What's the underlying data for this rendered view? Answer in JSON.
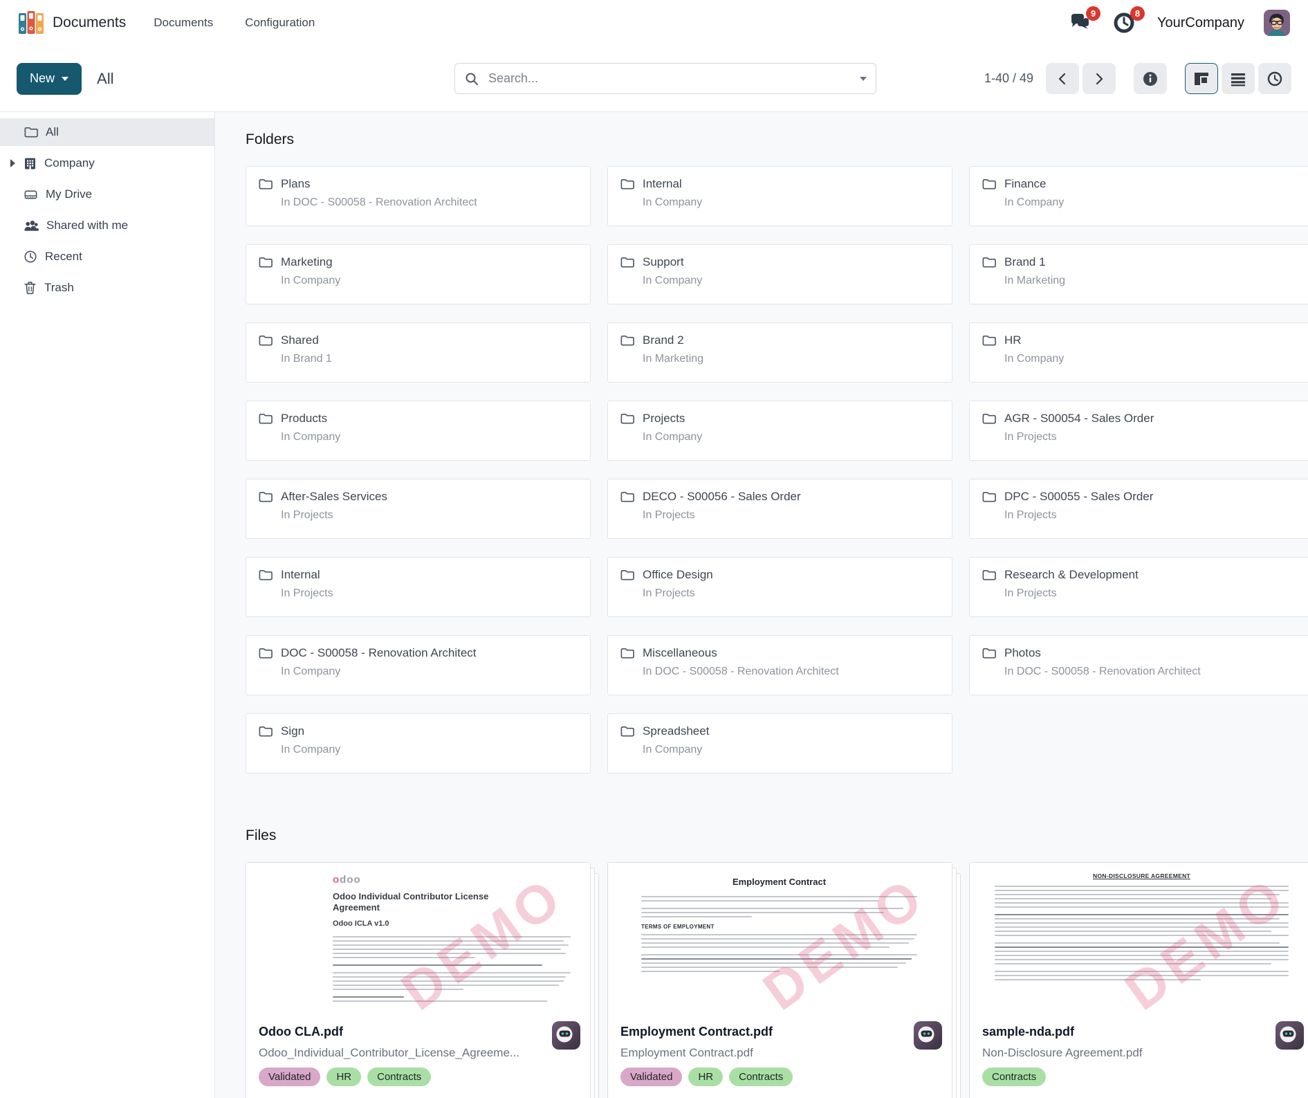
{
  "header": {
    "app_name": "Documents",
    "menus": [
      {
        "label": "Documents"
      },
      {
        "label": "Configuration"
      }
    ],
    "chat_badge": "9",
    "activity_badge": "8",
    "company": "YourCompany"
  },
  "control": {
    "new_label": "New",
    "breadcrumb": "All",
    "search_placeholder": "Search...",
    "pager": "1-40 / 49"
  },
  "sidebar": {
    "items": [
      {
        "label": "All"
      },
      {
        "label": "Company"
      },
      {
        "label": "My Drive"
      },
      {
        "label": "Shared with me"
      },
      {
        "label": "Recent"
      },
      {
        "label": "Trash"
      }
    ]
  },
  "sections": {
    "folders_title": "Folders",
    "files_title": "Files"
  },
  "folders": [
    {
      "name": "Plans",
      "location": "In DOC - S00058 - Renovation Architect"
    },
    {
      "name": "Internal",
      "location": "In Company"
    },
    {
      "name": "Finance",
      "location": "In Company"
    },
    {
      "name": "Marketing",
      "location": "In Company"
    },
    {
      "name": "Support",
      "location": "In Company"
    },
    {
      "name": "Brand 1",
      "location": "In Marketing"
    },
    {
      "name": "Shared",
      "location": "In Brand 1"
    },
    {
      "name": "Brand 2",
      "location": "In Marketing"
    },
    {
      "name": "HR",
      "location": "In Company"
    },
    {
      "name": "Products",
      "location": "In Company"
    },
    {
      "name": "Projects",
      "location": "In Company"
    },
    {
      "name": "AGR - S00054 - Sales Order",
      "location": "In Projects"
    },
    {
      "name": "After-Sales Services",
      "location": "In Projects"
    },
    {
      "name": "DECO - S00056 - Sales Order",
      "location": "In Projects"
    },
    {
      "name": "DPC - S00055 - Sales Order",
      "location": "In Projects"
    },
    {
      "name": "Internal",
      "location": "In Projects"
    },
    {
      "name": "Office Design",
      "location": "In Projects"
    },
    {
      "name": "Research & Development",
      "location": "In Projects"
    },
    {
      "name": "DOC - S00058 - Renovation Architect",
      "location": "In Company"
    },
    {
      "name": "Miscellaneous",
      "location": "In DOC - S00058 - Renovation Architect"
    },
    {
      "name": "Photos",
      "location": "In DOC - S00058 - Renovation Architect"
    },
    {
      "name": "Sign",
      "location": "In Company"
    },
    {
      "name": "Spreadsheet",
      "location": "In Company"
    }
  ],
  "files": [
    {
      "title": "Odoo CLA.pdf",
      "subtitle": "Odoo_Individual_Contributor_License_Agreeme...",
      "tags": [
        {
          "label": "Validated",
          "color": "pink"
        },
        {
          "label": "HR",
          "color": "green"
        },
        {
          "label": "Contracts",
          "color": "green"
        }
      ],
      "thumb": {
        "type": "cla",
        "logo_first": "o",
        "logo_rest": "doo",
        "heading": "Odoo Individual Contributor License Agreement",
        "version": "Odoo ICLA v1.0",
        "watermark": "DEMO"
      }
    },
    {
      "title": "Employment Contract.pdf",
      "subtitle": "Employment Contract.pdf",
      "tags": [
        {
          "label": "Validated",
          "color": "pink"
        },
        {
          "label": "HR",
          "color": "green"
        },
        {
          "label": "Contracts",
          "color": "green"
        }
      ],
      "thumb": {
        "type": "contract",
        "heading": "Employment Contract",
        "section": "TERMS OF EMPLOYMENT",
        "watermark": "DEMO"
      }
    },
    {
      "title": "sample-nda.pdf",
      "subtitle": "Non-Disclosure Agreement.pdf",
      "tags": [
        {
          "label": "Contracts",
          "color": "green"
        }
      ],
      "thumb": {
        "type": "nda",
        "heading": "NON-DISCLOSURE AGREEMENT",
        "watermark": "DEMO"
      }
    }
  ],
  "colors": {
    "accent": "#16586e",
    "badge_red": "#da382d",
    "tag_pink": "#d9a7c7",
    "tag_green": "#a9dfa4",
    "content_bg": "#f8f9fa"
  }
}
